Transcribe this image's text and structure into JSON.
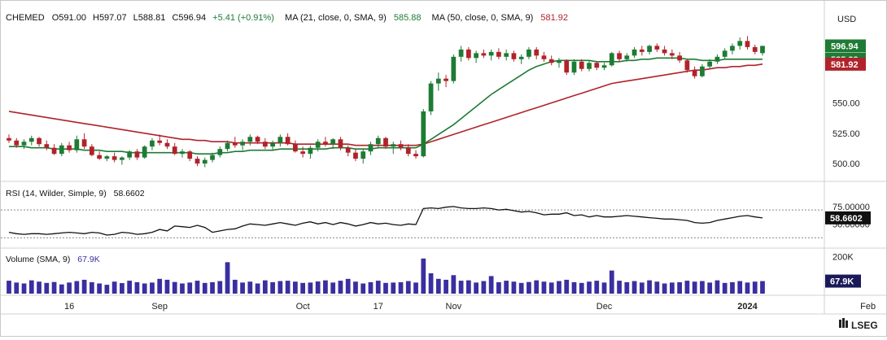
{
  "header": {
    "symbol": "CHEMED",
    "open": "O591.00",
    "high": "H597.07",
    "low": "L588.81",
    "close": "C596.94",
    "change": "+5.41 (+0.91%)",
    "ma21_label": "MA (21, close, 0, SMA, 9)",
    "ma21_value": "585.88",
    "ma50_label": "MA (50, close, 0, SMA, 9)",
    "ma50_value": "581.92",
    "currency": "USD"
  },
  "rsi_panel": {
    "label": "RSI (14, Wilder, Simple, 9)",
    "value": "58.6602"
  },
  "volume_panel": {
    "label": "Volume (SMA, 9)",
    "value": "67.9K"
  },
  "branding": {
    "logo_text": "LSEG"
  },
  "colors": {
    "up": "#1e7b34",
    "down": "#b0232a",
    "ma21": "#1e7b34",
    "ma50": "#b0232a",
    "rsi": "#111111",
    "volume": "#3a2fa0"
  },
  "chart_data": [
    {
      "type": "candlestick",
      "x_ticks": [
        "16",
        "Sep",
        "Oct",
        "17",
        "Nov",
        "Dec",
        "2024",
        "Feb"
      ],
      "y_ticks": [
        "500.00",
        "525.00",
        "550.00"
      ],
      "price_labels": [
        "596.94",
        "585.88",
        "581.92"
      ],
      "ylim": [
        490,
        610
      ],
      "ohlc": [
        [
          521,
          524,
          517,
          519
        ],
        [
          519,
          521,
          513,
          515
        ],
        [
          515,
          520,
          512,
          518
        ],
        [
          518,
          523,
          515,
          521
        ],
        [
          521,
          522,
          514,
          516
        ],
        [
          516,
          519,
          511,
          513
        ],
        [
          513,
          516,
          507,
          508
        ],
        [
          508,
          517,
          506,
          515
        ],
        [
          515,
          518,
          509,
          511
        ],
        [
          511,
          523,
          509,
          520
        ],
        [
          520,
          525,
          512,
          514
        ],
        [
          514,
          516,
          506,
          507
        ],
        [
          507,
          510,
          503,
          504
        ],
        [
          504,
          507,
          502,
          506
        ],
        [
          506,
          509,
          501,
          503
        ],
        [
          503,
          506,
          499,
          505
        ],
        [
          505,
          511,
          503,
          510
        ],
        [
          510,
          512,
          503,
          505
        ],
        [
          505,
          515,
          504,
          514
        ],
        [
          514,
          521,
          511,
          519
        ],
        [
          519,
          524,
          515,
          517
        ],
        [
          517,
          520,
          512,
          514
        ],
        [
          514,
          517,
          507,
          508
        ],
        [
          508,
          512,
          505,
          510
        ],
        [
          510,
          511,
          502,
          504
        ],
        [
          504,
          506,
          498,
          500
        ],
        [
          500,
          505,
          497,
          503
        ],
        [
          503,
          509,
          501,
          507
        ],
        [
          507,
          514,
          505,
          512
        ],
        [
          512,
          519,
          510,
          517
        ],
        [
          517,
          522,
          513,
          515
        ],
        [
          515,
          520,
          511,
          518
        ],
        [
          518,
          524,
          515,
          522
        ],
        [
          522,
          523,
          516,
          518
        ],
        [
          518,
          521,
          512,
          514
        ],
        [
          514,
          519,
          511,
          517
        ],
        [
          517,
          524,
          514,
          522
        ],
        [
          522,
          525,
          515,
          516
        ],
        [
          516,
          519,
          509,
          510
        ],
        [
          510,
          514,
          505,
          508
        ],
        [
          508,
          515,
          504,
          513
        ],
        [
          513,
          520,
          510,
          518
        ],
        [
          518,
          522,
          514,
          516
        ],
        [
          516,
          521,
          512,
          520
        ],
        [
          520,
          522,
          511,
          513
        ],
        [
          513,
          515,
          506,
          509
        ],
        [
          509,
          512,
          502,
          504
        ],
        [
          504,
          512,
          500,
          510
        ],
        [
          510,
          518,
          507,
          516
        ],
        [
          516,
          523,
          513,
          521
        ],
        [
          521,
          522,
          512,
          514
        ],
        [
          514,
          518,
          508,
          516
        ],
        [
          516,
          519,
          511,
          513
        ],
        [
          513,
          516,
          506,
          508
        ],
        [
          508,
          511,
          504,
          506
        ],
        [
          506,
          545,
          505,
          543
        ],
        [
          543,
          568,
          540,
          566
        ],
        [
          566,
          575,
          560,
          570
        ],
        [
          570,
          573,
          563,
          568
        ],
        [
          568,
          590,
          566,
          588
        ],
        [
          588,
          597,
          584,
          594
        ],
        [
          594,
          596,
          585,
          587
        ],
        [
          587,
          593,
          583,
          591
        ],
        [
          591,
          594,
          587,
          589
        ],
        [
          589,
          594,
          585,
          592
        ],
        [
          592,
          595,
          586,
          588
        ],
        [
          588,
          594,
          585,
          591
        ],
        [
          591,
          593,
          584,
          586
        ],
        [
          586,
          590,
          582,
          588
        ],
        [
          588,
          596,
          586,
          594
        ],
        [
          594,
          596,
          586,
          589
        ],
        [
          589,
          592,
          584,
          586
        ],
        [
          586,
          589,
          581,
          583
        ],
        [
          583,
          587,
          579,
          585
        ],
        [
          585,
          586,
          573,
          575
        ],
        [
          575,
          586,
          573,
          584
        ],
        [
          584,
          586,
          576,
          578
        ],
        [
          578,
          585,
          576,
          583
        ],
        [
          583,
          584,
          577,
          579
        ],
        [
          579,
          583,
          577,
          581
        ],
        [
          581,
          592,
          580,
          591
        ],
        [
          591,
          593,
          584,
          586
        ],
        [
          586,
          591,
          584,
          589
        ],
        [
          589,
          596,
          587,
          594
        ],
        [
          594,
          597,
          589,
          592
        ],
        [
          592,
          598,
          590,
          597
        ],
        [
          597,
          599,
          592,
          594
        ],
        [
          594,
          597,
          589,
          591
        ],
        [
          591,
          594,
          586,
          589
        ],
        [
          589,
          592,
          583,
          585
        ],
        [
          585,
          586,
          575,
          577
        ],
        [
          577,
          580,
          570,
          572
        ],
        [
          572,
          582,
          571,
          580
        ],
        [
          580,
          586,
          578,
          584
        ],
        [
          584,
          590,
          582,
          588
        ],
        [
          588,
          595,
          586,
          593
        ],
        [
          593,
          599,
          590,
          597
        ],
        [
          597,
          604,
          594,
          601
        ],
        [
          601,
          605,
          594,
          596
        ],
        [
          596,
          598,
          590,
          592
        ],
        [
          591,
          597,
          589,
          597
        ]
      ],
      "ma21": [
        514,
        514,
        514,
        513,
        513,
        513,
        512,
        512,
        512,
        512,
        511,
        511,
        511,
        510,
        510,
        510,
        509,
        509,
        509,
        509,
        509,
        509,
        509,
        509,
        509,
        508,
        508,
        508,
        509,
        509,
        510,
        510,
        511,
        511,
        511,
        511,
        512,
        512,
        512,
        512,
        512,
        512,
        512,
        513,
        513,
        513,
        512,
        512,
        512,
        513,
        513,
        513,
        513,
        513,
        513,
        516,
        520,
        524,
        528,
        532,
        537,
        542,
        547,
        552,
        557,
        561,
        565,
        569,
        573,
        577,
        580,
        582,
        584,
        585,
        585,
        585,
        585,
        585,
        584,
        584,
        584,
        584,
        585,
        585,
        586,
        586,
        587,
        587,
        587,
        587,
        586,
        586,
        585,
        585,
        585,
        586,
        586,
        586,
        586,
        586,
        586
      ],
      "ma50": [
        543,
        542,
        541,
        540,
        539,
        538,
        537,
        536,
        535,
        534,
        533,
        532,
        531,
        530,
        529,
        528,
        527,
        526,
        525,
        524,
        523,
        522,
        521,
        520,
        520,
        519,
        519,
        518,
        518,
        518,
        517,
        517,
        517,
        517,
        517,
        517,
        517,
        517,
        516,
        516,
        516,
        516,
        516,
        516,
        516,
        516,
        515,
        515,
        515,
        515,
        515,
        515,
        515,
        515,
        515,
        516,
        518,
        520,
        522,
        524,
        526,
        528,
        530,
        532,
        534,
        536,
        538,
        540,
        542,
        544,
        546,
        548,
        550,
        552,
        554,
        556,
        558,
        560,
        562,
        564,
        566,
        567,
        568,
        569,
        570,
        571,
        572,
        573,
        574,
        575,
        576,
        577,
        577,
        578,
        579,
        579,
        580,
        580,
        581,
        581,
        582
      ]
    },
    {
      "type": "line",
      "name": "RSI (14, Wilder, Simple, 9)",
      "y_ticks": [
        "75.00000",
        "50.00000"
      ],
      "ylim": [
        20,
        90
      ],
      "levels": [
        70,
        30
      ],
      "values": [
        38,
        36,
        35,
        36,
        36,
        35,
        36,
        37,
        38,
        37,
        36,
        38,
        37,
        34,
        35,
        38,
        37,
        35,
        36,
        38,
        42,
        40,
        47,
        46,
        45,
        48,
        45,
        38,
        40,
        42,
        43,
        47,
        50,
        49,
        48,
        50,
        52,
        50,
        48,
        51,
        53,
        50,
        52,
        49,
        52,
        50,
        47,
        49,
        52,
        50,
        51,
        49,
        48,
        50,
        49,
        72,
        73,
        72,
        74,
        75,
        73,
        72,
        72,
        73,
        72,
        70,
        71,
        69,
        67,
        68,
        66,
        63,
        64,
        64,
        66,
        62,
        63,
        60,
        62,
        60,
        60,
        61,
        62,
        61,
        60,
        59,
        58,
        57,
        57,
        56,
        55,
        52,
        51,
        52,
        55,
        57,
        59,
        61,
        62,
        60,
        58.66
      ]
    },
    {
      "type": "bar",
      "name": "Volume (SMA, 9)",
      "y_ticks": [
        "200K"
      ],
      "ylim": [
        0,
        220
      ],
      "values": [
        70,
        60,
        55,
        72,
        65,
        58,
        63,
        50,
        60,
        68,
        75,
        62,
        55,
        48,
        65,
        57,
        70,
        62,
        55,
        60,
        80,
        75,
        63,
        55,
        60,
        70,
        58,
        62,
        68,
        170,
        75,
        60,
        65,
        55,
        72,
        62,
        68,
        70,
        65,
        58,
        60,
        66,
        72,
        60,
        70,
        80,
        65,
        55,
        62,
        70,
        58,
        60,
        62,
        68,
        60,
        190,
        110,
        80,
        75,
        100,
        70,
        72,
        60,
        68,
        95,
        62,
        70,
        65,
        58,
        63,
        72,
        65,
        60,
        68,
        75,
        62,
        58,
        65,
        70,
        60,
        125,
        70,
        62,
        68,
        60,
        72,
        65,
        55,
        60,
        62,
        70,
        65,
        68,
        60,
        72,
        58,
        62,
        68,
        60,
        65,
        67.9
      ]
    }
  ]
}
